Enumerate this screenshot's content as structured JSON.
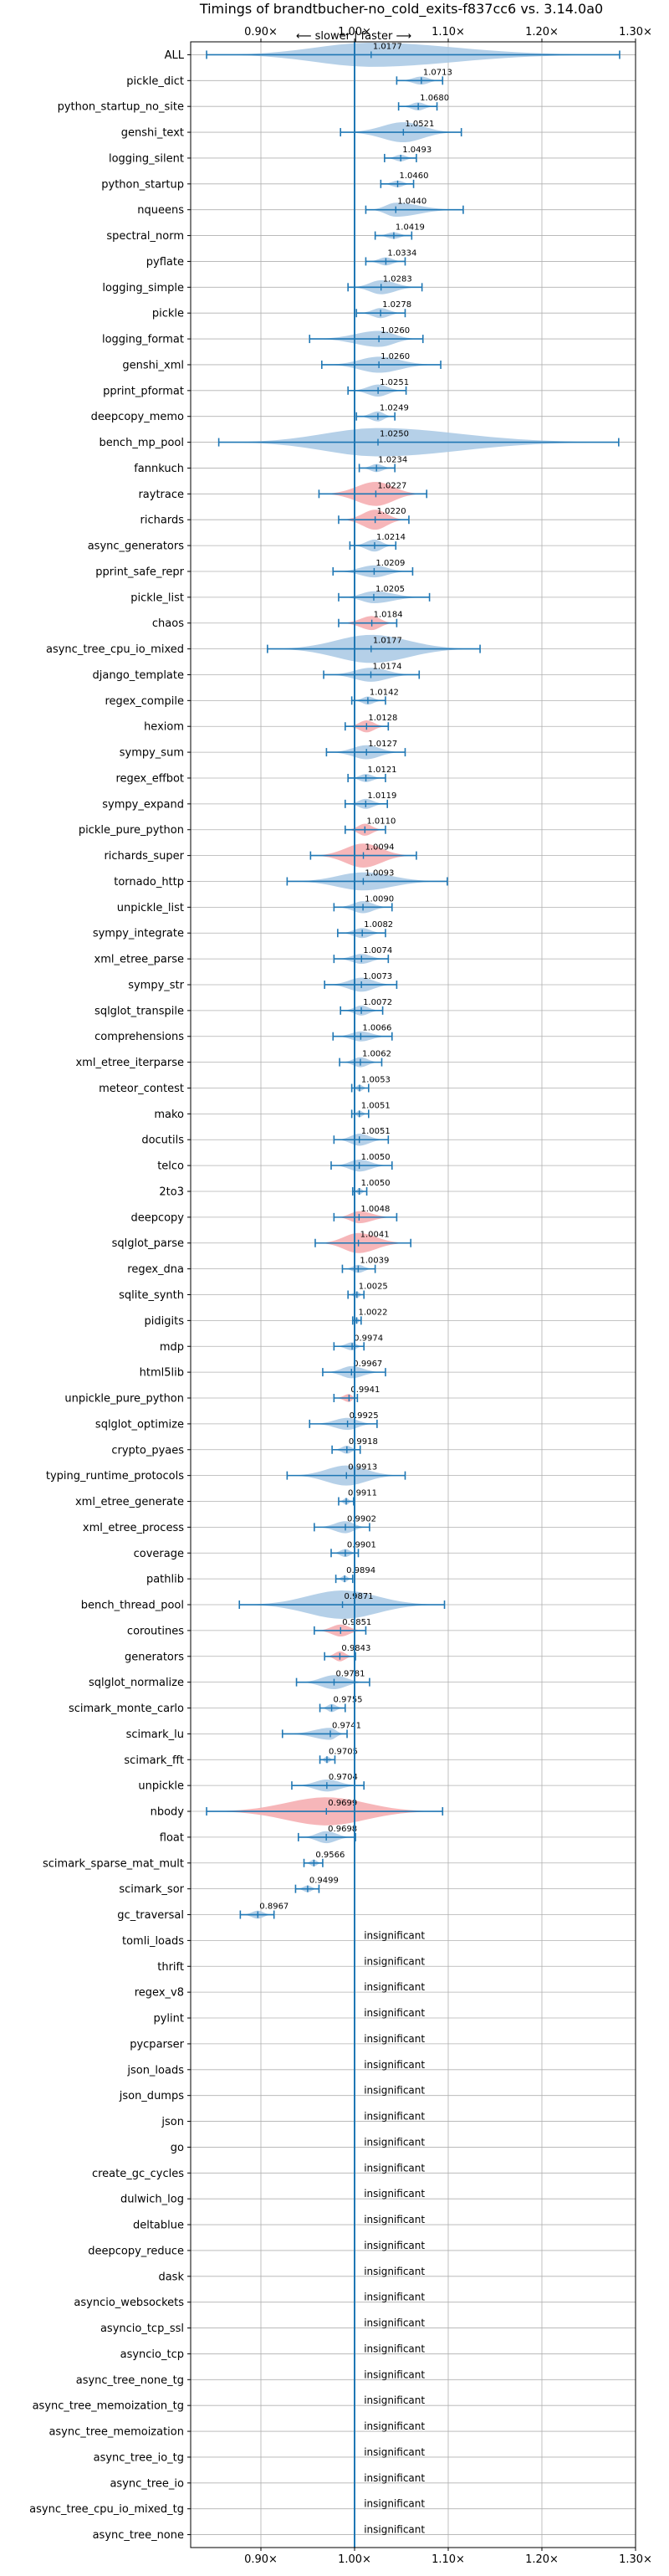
{
  "chart_data": {
    "type": "violin",
    "title": "Timings of brandtbucher-no_cold_exits-f837cc6 vs. 3.14.0a0",
    "direction_label": "⟵ slower | faster ⟶",
    "x_ticks": [
      {
        "value": 0.9,
        "label": "0.90×"
      },
      {
        "value": 1.0,
        "label": "1.00×"
      },
      {
        "value": 1.1,
        "label": "1.10×"
      },
      {
        "value": 1.2,
        "label": "1.20×"
      },
      {
        "value": 1.3,
        "label": "1.30×"
      }
    ],
    "xlim": [
      0.825,
      1.3
    ],
    "reference_line": 1.0,
    "grid": true,
    "insignificant_label": "insignificant",
    "colors": {
      "faster": "#a8c8e4",
      "slower": "#f4a9ad",
      "line": "#1f77b4"
    },
    "benchmarks": [
      {
        "name": "ALL",
        "mean": 1.0177,
        "lo": 0.842,
        "hi": 1.283,
        "w": 0.06,
        "color": "faster"
      },
      {
        "name": "pickle_dict",
        "mean": 1.0713,
        "lo": 1.045,
        "hi": 1.094,
        "w": 0.02,
        "color": "faster"
      },
      {
        "name": "python_startup_no_site",
        "mean": 1.068,
        "lo": 1.047,
        "hi": 1.088,
        "w": 0.02,
        "color": "faster"
      },
      {
        "name": "genshi_text",
        "mean": 1.0521,
        "lo": 0.985,
        "hi": 1.114,
        "w": 0.05,
        "color": "faster"
      },
      {
        "name": "logging_silent",
        "mean": 1.0493,
        "lo": 1.032,
        "hi": 1.066,
        "w": 0.015,
        "color": "faster"
      },
      {
        "name": "python_startup",
        "mean": 1.046,
        "lo": 1.028,
        "hi": 1.063,
        "w": 0.015,
        "color": "faster"
      },
      {
        "name": "nqueens",
        "mean": 1.044,
        "lo": 1.012,
        "hi": 1.116,
        "w": 0.035,
        "color": "faster"
      },
      {
        "name": "spectral_norm",
        "mean": 1.0419,
        "lo": 1.022,
        "hi": 1.061,
        "w": 0.015,
        "color": "faster"
      },
      {
        "name": "pyflate",
        "mean": 1.0334,
        "lo": 1.012,
        "hi": 1.054,
        "w": 0.02,
        "color": "faster"
      },
      {
        "name": "logging_simple",
        "mean": 1.0283,
        "lo": 0.993,
        "hi": 1.072,
        "w": 0.035,
        "color": "faster"
      },
      {
        "name": "pickle",
        "mean": 1.0278,
        "lo": 1.002,
        "hi": 1.054,
        "w": 0.025,
        "color": "faster"
      },
      {
        "name": "logging_format",
        "mean": 1.026,
        "lo": 0.952,
        "hi": 1.073,
        "w": 0.04,
        "color": "faster"
      },
      {
        "name": "genshi_xml",
        "mean": 1.026,
        "lo": 0.965,
        "hi": 1.092,
        "w": 0.04,
        "color": "faster"
      },
      {
        "name": "pprint_pformat",
        "mean": 1.0251,
        "lo": 0.993,
        "hi": 1.055,
        "w": 0.03,
        "color": "faster"
      },
      {
        "name": "deepcopy_memo",
        "mean": 1.0249,
        "lo": 1.002,
        "hi": 1.043,
        "w": 0.025,
        "color": "faster"
      },
      {
        "name": "bench_mp_pool",
        "mean": 1.025,
        "lo": 0.855,
        "hi": 1.282,
        "w": 0.09,
        "color": "faster"
      },
      {
        "name": "fannkuch",
        "mean": 1.0234,
        "lo": 1.005,
        "hi": 1.043,
        "w": 0.02,
        "color": "faster"
      },
      {
        "name": "raytrace",
        "mean": 1.0227,
        "lo": 0.962,
        "hi": 1.077,
        "w": 0.06,
        "color": "slower"
      },
      {
        "name": "richards",
        "mean": 1.022,
        "lo": 0.983,
        "hi": 1.058,
        "w": 0.05,
        "color": "slower"
      },
      {
        "name": "async_generators",
        "mean": 1.0214,
        "lo": 0.995,
        "hi": 1.044,
        "w": 0.03,
        "color": "faster"
      },
      {
        "name": "pprint_safe_repr",
        "mean": 1.0209,
        "lo": 0.977,
        "hi": 1.062,
        "w": 0.03,
        "color": "faster"
      },
      {
        "name": "pickle_list",
        "mean": 1.0205,
        "lo": 0.983,
        "hi": 1.08,
        "w": 0.03,
        "color": "faster"
      },
      {
        "name": "chaos",
        "mean": 1.0184,
        "lo": 0.983,
        "hi": 1.045,
        "w": 0.035,
        "color": "slower"
      },
      {
        "name": "async_tree_cpu_io_mixed",
        "mean": 1.0177,
        "lo": 0.907,
        "hi": 1.134,
        "w": 0.07,
        "color": "faster"
      },
      {
        "name": "django_template",
        "mean": 1.0174,
        "lo": 0.967,
        "hi": 1.069,
        "w": 0.035,
        "color": "faster"
      },
      {
        "name": "regex_compile",
        "mean": 1.0142,
        "lo": 0.997,
        "hi": 1.033,
        "w": 0.02,
        "color": "faster"
      },
      {
        "name": "hexiom",
        "mean": 1.0128,
        "lo": 0.99,
        "hi": 1.036,
        "w": 0.03,
        "color": "slower"
      },
      {
        "name": "sympy_sum",
        "mean": 1.0127,
        "lo": 0.97,
        "hi": 1.054,
        "w": 0.035,
        "color": "faster"
      },
      {
        "name": "regex_effbot",
        "mean": 1.0121,
        "lo": 0.993,
        "hi": 1.033,
        "w": 0.02,
        "color": "faster"
      },
      {
        "name": "sympy_expand",
        "mean": 1.0119,
        "lo": 0.99,
        "hi": 1.035,
        "w": 0.025,
        "color": "faster"
      },
      {
        "name": "pickle_pure_python",
        "mean": 1.011,
        "lo": 0.99,
        "hi": 1.033,
        "w": 0.03,
        "color": "slower"
      },
      {
        "name": "richards_super",
        "mean": 1.0094,
        "lo": 0.953,
        "hi": 1.066,
        "w": 0.06,
        "color": "slower"
      },
      {
        "name": "tornado_http",
        "mean": 1.0093,
        "lo": 0.928,
        "hi": 1.099,
        "w": 0.045,
        "color": "faster"
      },
      {
        "name": "unpickle_list",
        "mean": 1.009,
        "lo": 0.978,
        "hi": 1.04,
        "w": 0.03,
        "color": "faster"
      },
      {
        "name": "sympy_integrate",
        "mean": 1.0082,
        "lo": 0.982,
        "hi": 1.033,
        "w": 0.025,
        "color": "faster"
      },
      {
        "name": "xml_etree_parse",
        "mean": 1.0074,
        "lo": 0.978,
        "hi": 1.036,
        "w": 0.025,
        "color": "faster"
      },
      {
        "name": "sympy_str",
        "mean": 1.0073,
        "lo": 0.968,
        "hi": 1.045,
        "w": 0.035,
        "color": "faster"
      },
      {
        "name": "sqlglot_transpile",
        "mean": 1.0072,
        "lo": 0.985,
        "hi": 1.03,
        "w": 0.025,
        "color": "faster"
      },
      {
        "name": "comprehensions",
        "mean": 1.0066,
        "lo": 0.977,
        "hi": 1.04,
        "w": 0.025,
        "color": "faster"
      },
      {
        "name": "xml_etree_iterparse",
        "mean": 1.0062,
        "lo": 0.984,
        "hi": 1.029,
        "w": 0.025,
        "color": "faster"
      },
      {
        "name": "meteor_contest",
        "mean": 1.0053,
        "lo": 0.997,
        "hi": 1.015,
        "w": 0.012,
        "color": "faster"
      },
      {
        "name": "mako",
        "mean": 1.0051,
        "lo": 0.997,
        "hi": 1.015,
        "w": 0.012,
        "color": "faster"
      },
      {
        "name": "docutils",
        "mean": 1.0051,
        "lo": 0.978,
        "hi": 1.036,
        "w": 0.03,
        "color": "faster"
      },
      {
        "name": "telco",
        "mean": 1.005,
        "lo": 0.975,
        "hi": 1.04,
        "w": 0.03,
        "color": "faster"
      },
      {
        "name": "2to3",
        "mean": 1.005,
        "lo": 0.998,
        "hi": 1.013,
        "w": 0.01,
        "color": "faster"
      },
      {
        "name": "deepcopy",
        "mean": 1.0048,
        "lo": 0.978,
        "hi": 1.045,
        "w": 0.03,
        "color": "slower"
      },
      {
        "name": "sqlglot_parse",
        "mean": 1.0041,
        "lo": 0.958,
        "hi": 1.06,
        "w": 0.05,
        "color": "slower"
      },
      {
        "name": "regex_dna",
        "mean": 1.0039,
        "lo": 0.987,
        "hi": 1.022,
        "w": 0.02,
        "color": "faster"
      },
      {
        "name": "sqlite_synth",
        "mean": 1.0025,
        "lo": 0.993,
        "hi": 1.01,
        "w": 0.015,
        "color": "faster"
      },
      {
        "name": "pidigits",
        "mean": 1.0022,
        "lo": 0.998,
        "hi": 1.007,
        "w": 0.008,
        "color": "faster"
      },
      {
        "name": "mdp",
        "mean": 0.9974,
        "lo": 0.978,
        "hi": 1.01,
        "w": 0.02,
        "color": "faster"
      },
      {
        "name": "html5lib",
        "mean": 0.9967,
        "lo": 0.966,
        "hi": 1.033,
        "w": 0.03,
        "color": "faster"
      },
      {
        "name": "unpickle_pure_python",
        "mean": 0.9941,
        "lo": 0.978,
        "hi": 1.003,
        "w": 0.02,
        "color": "slower"
      },
      {
        "name": "sqlglot_optimize",
        "mean": 0.9925,
        "lo": 0.952,
        "hi": 1.024,
        "w": 0.03,
        "color": "faster"
      },
      {
        "name": "crypto_pyaes",
        "mean": 0.9918,
        "lo": 0.976,
        "hi": 1.006,
        "w": 0.02,
        "color": "faster"
      },
      {
        "name": "typing_runtime_protocols",
        "mean": 0.9913,
        "lo": 0.928,
        "hi": 1.054,
        "w": 0.05,
        "color": "faster"
      },
      {
        "name": "xml_etree_generate",
        "mean": 0.9911,
        "lo": 0.983,
        "hi": 0.999,
        "w": 0.012,
        "color": "faster"
      },
      {
        "name": "xml_etree_process",
        "mean": 0.9902,
        "lo": 0.957,
        "hi": 1.016,
        "w": 0.03,
        "color": "faster"
      },
      {
        "name": "coverage",
        "mean": 0.9901,
        "lo": 0.975,
        "hi": 1.004,
        "w": 0.02,
        "color": "faster"
      },
      {
        "name": "pathlib",
        "mean": 0.9894,
        "lo": 0.98,
        "hi": 0.998,
        "w": 0.015,
        "color": "faster"
      },
      {
        "name": "bench_thread_pool",
        "mean": 0.9871,
        "lo": 0.877,
        "hi": 1.096,
        "w": 0.08,
        "color": "faster"
      },
      {
        "name": "coroutines",
        "mean": 0.9851,
        "lo": 0.957,
        "hi": 1.012,
        "w": 0.03,
        "color": "slower"
      },
      {
        "name": "generators",
        "mean": 0.9843,
        "lo": 0.968,
        "hi": 1.001,
        "w": 0.025,
        "color": "slower"
      },
      {
        "name": "sqlglot_normalize",
        "mean": 0.9781,
        "lo": 0.938,
        "hi": 1.016,
        "w": 0.035,
        "color": "faster"
      },
      {
        "name": "scimark_monte_carlo",
        "mean": 0.9755,
        "lo": 0.963,
        "hi": 0.99,
        "w": 0.02,
        "color": "faster"
      },
      {
        "name": "scimark_lu",
        "mean": 0.9741,
        "lo": 0.923,
        "hi": 0.992,
        "w": 0.03,
        "color": "faster"
      },
      {
        "name": "scimark_fft",
        "mean": 0.9705,
        "lo": 0.963,
        "hi": 0.979,
        "w": 0.012,
        "color": "faster"
      },
      {
        "name": "unpickle",
        "mean": 0.9704,
        "lo": 0.933,
        "hi": 1.01,
        "w": 0.03,
        "color": "faster"
      },
      {
        "name": "nbody",
        "mean": 0.9699,
        "lo": 0.842,
        "hi": 1.094,
        "w": 0.07,
        "color": "slower"
      },
      {
        "name": "float",
        "mean": 0.9698,
        "lo": 0.94,
        "hi": 1.001,
        "w": 0.03,
        "color": "faster"
      },
      {
        "name": "scimark_sparse_mat_mult",
        "mean": 0.9566,
        "lo": 0.946,
        "hi": 0.966,
        "w": 0.015,
        "color": "faster"
      },
      {
        "name": "scimark_sor",
        "mean": 0.9499,
        "lo": 0.937,
        "hi": 0.962,
        "w": 0.015,
        "color": "faster"
      },
      {
        "name": "gc_traversal",
        "mean": 0.8967,
        "lo": 0.878,
        "hi": 0.914,
        "w": 0.02,
        "color": "faster"
      },
      {
        "name": "tomli_loads",
        "insignificant": true
      },
      {
        "name": "thrift",
        "insignificant": true
      },
      {
        "name": "regex_v8",
        "insignificant": true
      },
      {
        "name": "pylint",
        "insignificant": true
      },
      {
        "name": "pycparser",
        "insignificant": true
      },
      {
        "name": "json_loads",
        "insignificant": true
      },
      {
        "name": "json_dumps",
        "insignificant": true
      },
      {
        "name": "json",
        "insignificant": true
      },
      {
        "name": "go",
        "insignificant": true
      },
      {
        "name": "create_gc_cycles",
        "insignificant": true
      },
      {
        "name": "dulwich_log",
        "insignificant": true
      },
      {
        "name": "deltablue",
        "insignificant": true
      },
      {
        "name": "deepcopy_reduce",
        "insignificant": true
      },
      {
        "name": "dask",
        "insignificant": true
      },
      {
        "name": "asyncio_websockets",
        "insignificant": true
      },
      {
        "name": "asyncio_tcp_ssl",
        "insignificant": true
      },
      {
        "name": "asyncio_tcp",
        "insignificant": true
      },
      {
        "name": "async_tree_none_tg",
        "insignificant": true
      },
      {
        "name": "async_tree_memoization_tg",
        "insignificant": true
      },
      {
        "name": "async_tree_memoization",
        "insignificant": true
      },
      {
        "name": "async_tree_io_tg",
        "insignificant": true
      },
      {
        "name": "async_tree_io",
        "insignificant": true
      },
      {
        "name": "async_tree_cpu_io_mixed_tg",
        "insignificant": true
      },
      {
        "name": "async_tree_none",
        "insignificant": true
      }
    ]
  }
}
